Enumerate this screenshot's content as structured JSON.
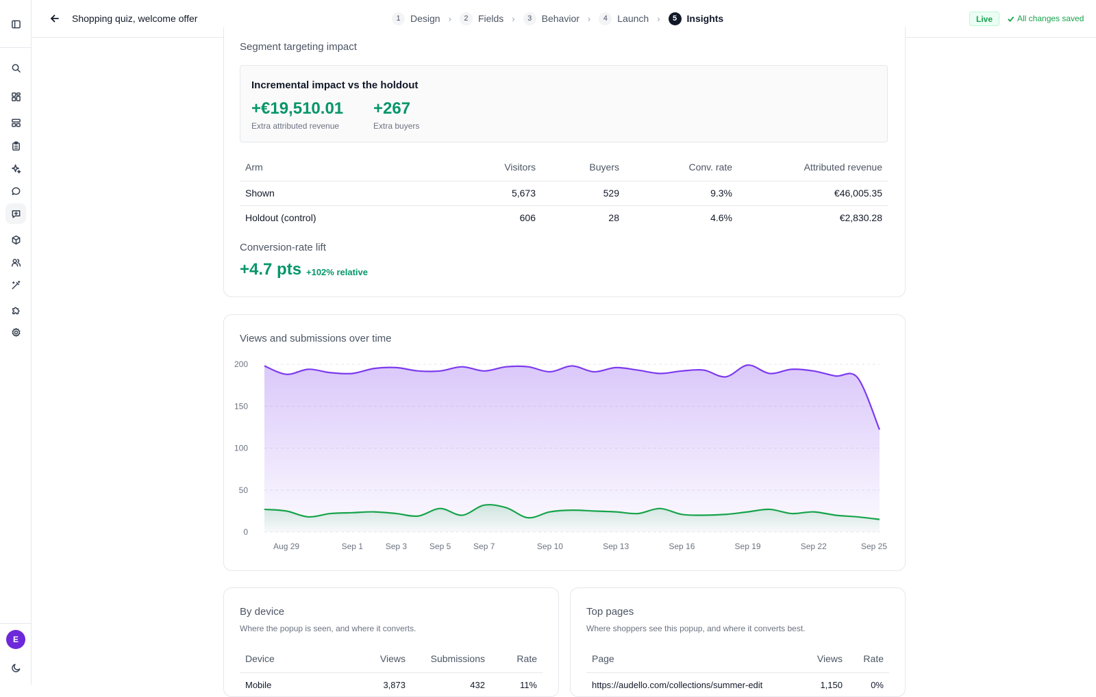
{
  "header": {
    "title": "Shopping quiz, welcome offer",
    "steps": [
      {
        "num": "1",
        "label": "Design"
      },
      {
        "num": "2",
        "label": "Fields"
      },
      {
        "num": "3",
        "label": "Behavior"
      },
      {
        "num": "4",
        "label": "Launch"
      },
      {
        "num": "5",
        "label": "Insights"
      }
    ],
    "live_label": "Live",
    "saved_label": "All changes saved"
  },
  "sidebar": {
    "avatar_initial": "E",
    "icons": [
      "panel-toggle-icon",
      "search-icon",
      "dashboard-icon",
      "layout-icon",
      "clipboard-icon",
      "sparkles-icon",
      "chat-icon",
      "message-square-icon",
      "package-icon",
      "users-icon",
      "magic-wand-icon",
      "puzzle-icon",
      "settings-icon",
      "moon-icon"
    ]
  },
  "segment": {
    "section_title": "Segment targeting impact",
    "impact_heading": "Incremental impact vs the holdout",
    "metrics": [
      {
        "value": "+€19,510.01",
        "label": "Extra attributed revenue"
      },
      {
        "value": "+267",
        "label": "Extra buyers"
      }
    ],
    "table": {
      "headers": [
        "Arm",
        "Visitors",
        "Buyers",
        "Conv. rate",
        "Attributed revenue"
      ],
      "rows": [
        [
          "Shown",
          "5,673",
          "529",
          "9.3%",
          "€46,005.35"
        ],
        [
          "Holdout (control)",
          "606",
          "28",
          "4.6%",
          "€2,830.28"
        ]
      ]
    },
    "lift_title": "Conversion-rate lift",
    "lift_value": "+4.7 pts",
    "lift_relative": "+102% relative"
  },
  "timeline": {
    "title": "Views and submissions over time"
  },
  "chart_data": {
    "type": "area",
    "title": "Views and submissions over time",
    "xlabel": "",
    "ylabel": "",
    "ylim": [
      0,
      200
    ],
    "yticks": [
      0,
      50,
      100,
      150,
      200
    ],
    "x": [
      "Aug 28",
      "Aug 29",
      "Aug 30",
      "Aug 31",
      "Sep 1",
      "Sep 2",
      "Sep 3",
      "Sep 4",
      "Sep 5",
      "Sep 6",
      "Sep 7",
      "Sep 8",
      "Sep 9",
      "Sep 10",
      "Sep 11",
      "Sep 12",
      "Sep 13",
      "Sep 14",
      "Sep 15",
      "Sep 16",
      "Sep 17",
      "Sep 18",
      "Sep 19",
      "Sep 20",
      "Sep 21",
      "Sep 22",
      "Sep 23",
      "Sep 24",
      "Sep 25"
    ],
    "xtick_labels": [
      "Aug 29",
      "Sep 1",
      "Sep 3",
      "Sep 5",
      "Sep 7",
      "Sep 10",
      "Sep 13",
      "Sep 16",
      "Sep 19",
      "Sep 22",
      "Sep 25"
    ],
    "grid": true,
    "series": [
      {
        "color": "#7c3aed",
        "values": [
          198,
          188,
          194,
          190,
          189,
          195,
          196,
          192,
          192,
          197,
          192,
          197,
          197,
          191,
          198,
          191,
          196,
          193,
          189,
          192,
          193,
          185,
          199,
          189,
          194,
          192,
          186,
          184,
          122
        ]
      },
      {
        "color": "#16a34a",
        "values": [
          27,
          25,
          18,
          22,
          23,
          24,
          22,
          19,
          28,
          20,
          32,
          29,
          17,
          24,
          26,
          25,
          24,
          22,
          28,
          21,
          20,
          21,
          24,
          27,
          22,
          24,
          20,
          18,
          15
        ]
      }
    ]
  },
  "device": {
    "title": "By device",
    "subtitle": "Where the popup is seen, and where it converts.",
    "headers": [
      "Device",
      "Views",
      "Submissions",
      "Rate"
    ],
    "rows": [
      [
        "Mobile",
        "3,873",
        "432",
        "11%"
      ]
    ]
  },
  "pages": {
    "title": "Top pages",
    "subtitle": "Where shoppers see this popup, and where it converts best.",
    "headers": [
      "Page",
      "Views",
      "Rate"
    ],
    "rows": [
      [
        "https://audello.com/collections/summer-edit",
        "1,150",
        "0%"
      ]
    ]
  }
}
